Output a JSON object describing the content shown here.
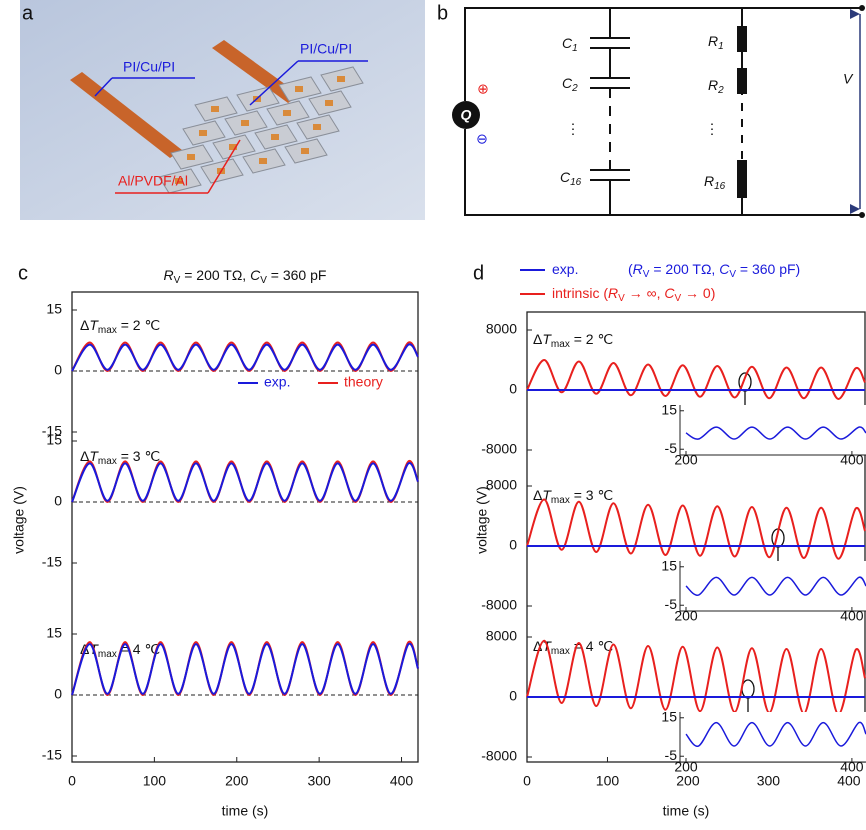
{
  "photo": {
    "panel_label": "a",
    "labels": [
      {
        "text": "PI/Cu/PI",
        "color": "#1a1adb"
      },
      {
        "text": "PI/Cu/PI",
        "color": "#1a1adb"
      },
      {
        "text": "Al/PVDF/Al",
        "color": "#e8201e"
      }
    ]
  },
  "circuit": {
    "panel_label": "b",
    "source": "Q",
    "plus": "⊕",
    "minus": "⊖",
    "voltage": "V",
    "ellipsis": "⋮",
    "capacitors": [
      {
        "letter": "C",
        "sub": "1"
      },
      {
        "letter": "C",
        "sub": "2"
      },
      {
        "letter": "C",
        "sub": "16"
      }
    ],
    "resistors": [
      {
        "letter": "R",
        "sub": "1"
      },
      {
        "letter": "R",
        "sub": "2"
      },
      {
        "letter": "R",
        "sub": "16"
      }
    ]
  },
  "chart_data": [
    {
      "type": "line",
      "panel_label": "c",
      "title_parts": [
        {
          "text": "R",
          "style": "italic"
        },
        {
          "text": "V",
          "style": "sub"
        },
        {
          "text": " = 200 TΩ, "
        },
        {
          "text": "C",
          "style": "italic"
        },
        {
          "text": "V",
          "style": "sub"
        },
        {
          "text": " = 360 pF"
        }
      ],
      "xlabel": "time  (s)",
      "ylabel": "voltage  (V)",
      "xlim": [
        0,
        420
      ],
      "xticks": [
        0,
        100,
        200,
        300,
        400
      ],
      "legend": [
        {
          "name": "exp.",
          "color": "#1a1adb"
        },
        {
          "name": "theory",
          "color": "#e8201e"
        }
      ],
      "x": [
        0,
        21.5,
        43,
        64.5,
        86,
        107.5,
        129,
        150.5,
        172,
        193.5,
        215,
        236.5,
        258,
        279.5,
        301,
        322.5,
        344,
        365.5,
        387,
        408.5,
        420
      ],
      "subplots": [
        {
          "annotation_parts": [
            {
              "text": "Δ"
            },
            {
              "text": "T",
              "style": "italic"
            },
            {
              "text": "max",
              "style": "sub"
            },
            {
              "text": " = 2 ℃"
            }
          ],
          "ylim": [
            -15,
            15
          ],
          "yticks": [
            15,
            0,
            -15
          ],
          "series": [
            {
              "values": [
                0,
                6.5,
                0.3,
                6.5,
                0.3,
                6.5,
                0.3,
                6.5,
                0.3,
                6.5,
                0.3,
                6.5,
                0.3,
                6.5,
                0.3,
                6.5,
                0.3,
                6.5,
                0.3,
                6.5,
                3.5
              ]
            },
            {
              "values": [
                0,
                7,
                0,
                7,
                0,
                7,
                0,
                7,
                0,
                7,
                0,
                7,
                0,
                7,
                0,
                7,
                0,
                7,
                0,
                7,
                3.5
              ]
            }
          ]
        },
        {
          "annotation_parts": [
            {
              "text": "Δ"
            },
            {
              "text": "T",
              "style": "italic"
            },
            {
              "text": "max",
              "style": "sub"
            },
            {
              "text": " = 3 ℃"
            }
          ],
          "ylim": [
            -15,
            15
          ],
          "yticks": [
            15,
            0,
            -15
          ],
          "series": [
            {
              "values": [
                0,
                9.5,
                0.3,
                9.5,
                0.3,
                9.5,
                0.3,
                9.5,
                0.3,
                9.5,
                0.3,
                9.5,
                0.3,
                9.5,
                0.3,
                9.5,
                0.3,
                9.5,
                0.3,
                9.5,
                5
              ]
            },
            {
              "values": [
                0,
                10,
                0,
                10,
                0,
                10,
                0,
                10,
                0,
                10,
                0,
                10,
                0,
                10,
                0,
                10,
                0,
                10,
                0,
                10,
                5
              ]
            }
          ]
        },
        {
          "annotation_parts": [
            {
              "text": "Δ"
            },
            {
              "text": "T",
              "style": "italic"
            },
            {
              "text": "max",
              "style": "sub"
            },
            {
              "text": " = 4 ℃"
            }
          ],
          "ylim": [
            -15,
            15
          ],
          "yticks": [
            15,
            0,
            -15
          ],
          "series": [
            {
              "values": [
                0,
                12.5,
                0.3,
                12.5,
                0.3,
                12.5,
                0.3,
                12.5,
                0.3,
                12.5,
                0.3,
                12.5,
                0.3,
                12.5,
                0.3,
                12.5,
                0.3,
                12.5,
                0.3,
                12.5,
                6.5
              ]
            },
            {
              "values": [
                0,
                13,
                0,
                13,
                0,
                13,
                0,
                13,
                0,
                13,
                0,
                13,
                0,
                13,
                0,
                13,
                0,
                13,
                0,
                13,
                6.5
              ]
            }
          ]
        }
      ]
    },
    {
      "type": "line",
      "panel_label": "d",
      "xlabel": "time  (s)",
      "ylabel": "voltage  (V)",
      "xlim": [
        0,
        420
      ],
      "xticks": [
        0,
        100,
        200,
        300,
        400
      ],
      "legend": [
        {
          "color": "#1a1adb",
          "name_parts": [
            {
              "text": "exp."
            }
          ],
          "note_parts": [
            {
              "text": "("
            },
            {
              "text": "R",
              "style": "italic"
            },
            {
              "text": "V",
              "style": "sub"
            },
            {
              "text": " = 200 TΩ, "
            },
            {
              "text": "C",
              "style": "italic"
            },
            {
              "text": "V",
              "style": "sub"
            },
            {
              "text": " = 360 pF)"
            }
          ]
        },
        {
          "color": "#e8201e",
          "name_parts": [
            {
              "text": "intrinsic ("
            },
            {
              "text": "R",
              "style": "italic"
            },
            {
              "text": "V",
              "style": "sub"
            },
            {
              "text": " → ∞, "
            },
            {
              "text": "C",
              "style": "italic"
            },
            {
              "text": "V",
              "style": "sub"
            },
            {
              "text": " → 0)"
            }
          ]
        }
      ],
      "x": [
        0,
        21.5,
        43,
        64.5,
        86,
        107.5,
        129,
        150.5,
        172,
        193.5,
        215,
        236.5,
        258,
        279.5,
        301,
        322.5,
        344,
        365.5,
        387,
        408.5,
        420
      ],
      "subplots": [
        {
          "annotation_parts": [
            {
              "text": "Δ"
            },
            {
              "text": "T",
              "style": "italic"
            },
            {
              "text": "max",
              "style": "sub"
            },
            {
              "text": " = 2 ℃"
            }
          ],
          "ylim": [
            -8000,
            8000
          ],
          "yticks": [
            8000,
            0,
            -8000
          ],
          "series": [
            {
              "values": [
                0,
                0,
                0,
                0,
                0,
                0,
                0,
                0,
                0,
                0,
                0,
                0,
                0,
                0,
                0,
                0,
                0,
                0,
                0,
                0,
                0
              ]
            },
            {
              "values": [
                0,
                4000,
                -300,
                3800,
                -500,
                3600,
                -700,
                3400,
                -800,
                3300,
                -900,
                3200,
                -1000,
                3100,
                -1100,
                3000,
                -1100,
                3000,
                -1200,
                2900,
                1000
              ]
            }
          ],
          "inset": {
            "x": [
              200,
              215,
              236.5,
              258,
              279.5,
              301,
              322.5,
              344,
              365.5,
              387,
              408.5,
              417
            ],
            "values": [
              3.5,
              0.3,
              6.5,
              0.3,
              6.5,
              0.3,
              6.5,
              0.3,
              6.5,
              0.3,
              6.5,
              3.5
            ],
            "xlim": [
              200,
              417
            ],
            "ylim": [
              -8,
              18
            ],
            "xticks": [
              200,
              400
            ],
            "yticks": [
              15,
              -5
            ]
          }
        },
        {
          "annotation_parts": [
            {
              "text": "Δ"
            },
            {
              "text": "T",
              "style": "italic"
            },
            {
              "text": "max",
              "style": "sub"
            },
            {
              "text": " = 3 ℃"
            }
          ],
          "ylim": [
            -8000,
            8000
          ],
          "yticks": [
            8000,
            0,
            -8000
          ],
          "series": [
            {
              "values": [
                0,
                0,
                0,
                0,
                0,
                0,
                0,
                0,
                0,
                0,
                0,
                0,
                0,
                0,
                0,
                0,
                0,
                0,
                0,
                0,
                0
              ]
            },
            {
              "values": [
                0,
                6200,
                -500,
                5900,
                -800,
                5700,
                -1000,
                5500,
                -1200,
                5400,
                -1300,
                5300,
                -1400,
                5200,
                -1500,
                5100,
                -1600,
                5100,
                -1700,
                5000,
                2000
              ]
            }
          ],
          "inset": {
            "x": [
              200,
              215,
              236.5,
              258,
              279.5,
              301,
              322.5,
              344,
              365.5,
              387,
              408.5,
              417
            ],
            "values": [
              5,
              0.3,
              9.5,
              0.3,
              9.5,
              0.3,
              9.5,
              0.3,
              9.5,
              0.3,
              9.5,
              5
            ],
            "xlim": [
              200,
              417
            ],
            "ylim": [
              -8,
              18
            ],
            "xticks": [
              200,
              400
            ],
            "yticks": [
              15,
              -5
            ]
          }
        },
        {
          "annotation_parts": [
            {
              "text": "Δ"
            },
            {
              "text": "T",
              "style": "italic"
            },
            {
              "text": "max",
              "style": "sub"
            },
            {
              "text": " = 4 ℃"
            }
          ],
          "ylim": [
            -8000,
            8000
          ],
          "yticks": [
            8000,
            0,
            -8000
          ],
          "series": [
            {
              "values": [
                0,
                0,
                0,
                0,
                0,
                0,
                0,
                0,
                0,
                0,
                0,
                0,
                0,
                0,
                0,
                0,
                0,
                0,
                0,
                0,
                0
              ]
            },
            {
              "values": [
                0,
                7500,
                -800,
                7200,
                -1200,
                7000,
                -1500,
                6800,
                -1700,
                6700,
                -1900,
                6600,
                -2000,
                6500,
                -2100,
                6400,
                -2200,
                6400,
                -2300,
                6300,
                2500
              ]
            }
          ],
          "inset": {
            "x": [
              200,
              215,
              236.5,
              258,
              279.5,
              301,
              322.5,
              344,
              365.5,
              387,
              408.5,
              417
            ],
            "values": [
              6.5,
              0.3,
              12.5,
              0.3,
              12.5,
              0.3,
              12.5,
              0.3,
              12.5,
              0.3,
              12.5,
              6.5
            ],
            "xlim": [
              200,
              417
            ],
            "ylim": [
              -8,
              18
            ],
            "xticks": [
              200,
              400
            ],
            "yticks": [
              15,
              -5
            ]
          }
        }
      ]
    }
  ]
}
